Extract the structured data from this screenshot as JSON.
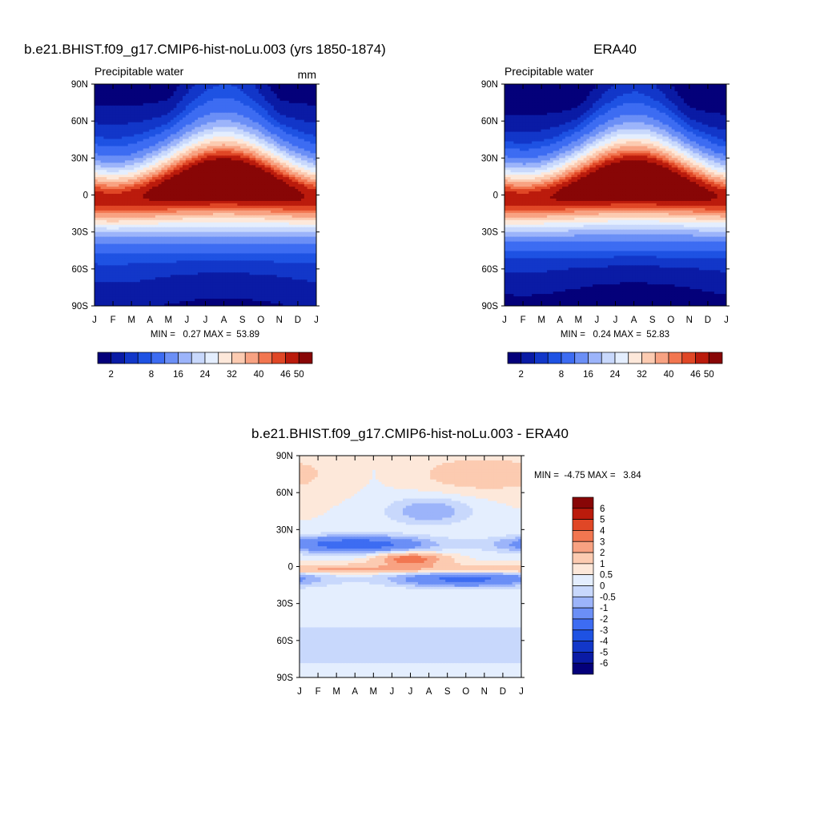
{
  "chart_data": [
    {
      "type": "heatmap",
      "title": "b.e21.BHIST.f09_g17.CMIP6-hist-noLu.003 (yrs 1850-1874)",
      "subtitle": "Precipitable water",
      "units": "mm",
      "x_ticks": [
        "J",
        "F",
        "M",
        "A",
        "M",
        "J",
        "J",
        "A",
        "S",
        "O",
        "N",
        "D",
        "J"
      ],
      "y_ticks": [
        "90N",
        "60N",
        "30N",
        "0",
        "30S",
        "60S",
        "90S"
      ],
      "xlim": [
        0,
        12
      ],
      "ylim": [
        -90,
        90
      ],
      "stats": "MIN =   0.27 MAX =  53.89",
      "min": 0.27,
      "max": 53.89,
      "levels": [
        2,
        4,
        6,
        8,
        12,
        16,
        20,
        24,
        28,
        32,
        36,
        40,
        43,
        46,
        50
      ],
      "colorbar_labels": [
        "2",
        "8",
        "16",
        "24",
        "32",
        "40",
        "46",
        "50"
      ],
      "colorbar_orientation": "horizontal"
    },
    {
      "type": "heatmap",
      "title": "ERA40",
      "subtitle": "Precipitable water",
      "x_ticks": [
        "J",
        "F",
        "M",
        "A",
        "M",
        "J",
        "J",
        "A",
        "S",
        "O",
        "N",
        "D",
        "J"
      ],
      "y_ticks": [
        "90N",
        "60N",
        "30N",
        "0",
        "30S",
        "60S",
        "90S"
      ],
      "xlim": [
        0,
        12
      ],
      "ylim": [
        -90,
        90
      ],
      "stats": "MIN =   0.24 MAX =  52.83",
      "min": 0.24,
      "max": 52.83,
      "levels": [
        2,
        4,
        6,
        8,
        12,
        16,
        20,
        24,
        28,
        32,
        36,
        40,
        43,
        46,
        50
      ],
      "colorbar_labels": [
        "2",
        "8",
        "16",
        "24",
        "32",
        "40",
        "46",
        "50"
      ],
      "colorbar_orientation": "horizontal"
    },
    {
      "type": "heatmap",
      "title": "b.e21.BHIST.f09_g17.CMIP6-hist-noLu.003 - ERA40",
      "x_ticks": [
        "J",
        "F",
        "M",
        "A",
        "M",
        "J",
        "J",
        "A",
        "S",
        "O",
        "N",
        "D",
        "J"
      ],
      "y_ticks": [
        "90N",
        "60N",
        "30N",
        "0",
        "30S",
        "60S",
        "90S"
      ],
      "xlim": [
        0,
        12
      ],
      "ylim": [
        -90,
        90
      ],
      "stats": "MIN =  -4.75 MAX =   3.84",
      "min": -4.75,
      "max": 3.84,
      "levels": [
        -6,
        -5,
        -4,
        -3,
        -2,
        -1,
        -0.5,
        0,
        0.5,
        1,
        2,
        3,
        4,
        5,
        6
      ],
      "colorbar_labels": [
        "6",
        "5",
        "4",
        "3",
        "2",
        "1",
        "0.5",
        "0",
        "-0.5",
        "-1",
        "-2",
        "-3",
        "-4",
        "-5",
        "-6"
      ],
      "colorbar_orientation": "vertical"
    }
  ],
  "colors": {
    "palette": [
      "#04007a",
      "#0a1ba5",
      "#1237c9",
      "#1e52e3",
      "#3d6cf2",
      "#6b8ff6",
      "#9cb4fa",
      "#c8d8fc",
      "#e4eefe",
      "#fde8da",
      "#fccbb1",
      "#f8a282",
      "#f27650",
      "#e04726",
      "#bb1b0c",
      "#880606"
    ]
  }
}
